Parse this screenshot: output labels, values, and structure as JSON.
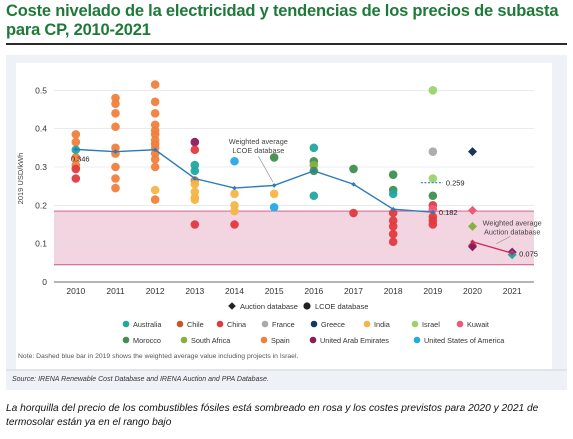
{
  "title": "Coste nivelado de la electricidad y tendencias de los precios de subasta para CP, 2010-2021",
  "caption": "La horquilla del precio de los combustibles fósiles está sombreado en rosa y los costes previstos para 2020 y 2021 de termosolar están ya en el rango bajo",
  "note": "Note: Dashed blue bar in 2019 shows the weighted average value including projects in Israel.",
  "source": "Source: IRENA Renewable Cost Database and IRENA Auction and PPA Database.",
  "colors": {
    "Australia": "#21a8a0",
    "Chile": "#c9542a",
    "China": "#e03a3e",
    "France": "#a9a9a9",
    "Greece": "#14365e",
    "India": "#f4b547",
    "Israel": "#9bd36b",
    "Kuwait": "#ec5a78",
    "Morocco": "#3f8f4f",
    "South Africa": "#86b13d",
    "Spain": "#f07f3c",
    "United Arab Emirates": "#8a1c5c",
    "United States of America": "#26a9e1",
    "trend": "#2b7bbd",
    "fossil_band": "#f3d5e1",
    "fossil_line": "#c9547e",
    "auction_line": "#d0245c"
  },
  "chart_data": {
    "type": "scatter",
    "title": "",
    "xlabel": "",
    "ylabel": "2019 USD/kWh",
    "xlim": [
      2009.45,
      2021.55
    ],
    "ylim": [
      0,
      0.54
    ],
    "xticks": [
      "2010",
      "2011",
      "2012",
      "2013",
      "2014",
      "2015",
      "2016",
      "2017",
      "2018",
      "2019",
      "2020",
      "2021"
    ],
    "yticks": [
      "0",
      "0.1",
      "0.2",
      "0.3",
      "0.4",
      "0.5"
    ],
    "fossil_fuel_range": [
      0.045,
      0.185
    ],
    "legend_shapes": [
      {
        "label": "Auction database",
        "shape": "diamond"
      },
      {
        "label": "LCOE database",
        "shape": "circle"
      }
    ],
    "legend_countries": [
      "Australia",
      "Chile",
      "China",
      "France",
      "Greece",
      "India",
      "Israel",
      "Kuwait",
      "Morocco",
      "South Africa",
      "Spain",
      "United Arab Emirates",
      "United States of America"
    ],
    "series": [
      {
        "name": "Weighted average LCOE database",
        "x": [
          2010,
          2011,
          2012,
          2013,
          2014,
          2015,
          2016,
          2017,
          2018,
          2019
        ],
        "y": [
          0.346,
          0.34,
          0.345,
          0.27,
          0.245,
          0.252,
          0.29,
          0.255,
          0.19,
          0.182
        ]
      },
      {
        "name": "Weighted average Auction database",
        "x": [
          2020,
          2021
        ],
        "y": [
          0.105,
          0.075
        ]
      }
    ],
    "labels": [
      {
        "x": 2010,
        "y": 0.346,
        "text": "0.346"
      },
      {
        "x": 2019,
        "y": 0.259,
        "text": "0.259"
      },
      {
        "x": 2019,
        "y": 0.182,
        "text": "0.182"
      },
      {
        "x": 2021,
        "y": 0.075,
        "text": "0.075"
      }
    ],
    "annotations": [
      {
        "text": "Weighted average LCOE database",
        "x": 2014.6,
        "y": 0.365
      },
      {
        "text": "Weighted average Auction database",
        "x": 2021.0,
        "y": 0.145
      }
    ],
    "israel_weighted_average": 0.259,
    "points": [
      {
        "c": "Spain",
        "x": 2010,
        "y": 0.385
      },
      {
        "c": "Spain",
        "x": 2010,
        "y": 0.365
      },
      {
        "c": "Spain",
        "x": 2010,
        "y": 0.325
      },
      {
        "c": "Spain",
        "x": 2010,
        "y": 0.305
      },
      {
        "c": "China",
        "x": 2010,
        "y": 0.295
      },
      {
        "c": "China",
        "x": 2010,
        "y": 0.27
      },
      {
        "c": "Australia",
        "x": 2010,
        "y": 0.345
      },
      {
        "c": "Spain",
        "x": 2011,
        "y": 0.48
      },
      {
        "c": "Spain",
        "x": 2011,
        "y": 0.465
      },
      {
        "c": "Spain",
        "x": 2011,
        "y": 0.44
      },
      {
        "c": "Spain",
        "x": 2011,
        "y": 0.405
      },
      {
        "c": "Spain",
        "x": 2011,
        "y": 0.35
      },
      {
        "c": "Spain",
        "x": 2011,
        "y": 0.335
      },
      {
        "c": "Spain",
        "x": 2011,
        "y": 0.3
      },
      {
        "c": "Spain",
        "x": 2011,
        "y": 0.27
      },
      {
        "c": "Spain",
        "x": 2011,
        "y": 0.245
      },
      {
        "c": "Spain",
        "x": 2012,
        "y": 0.515
      },
      {
        "c": "Spain",
        "x": 2012,
        "y": 0.47
      },
      {
        "c": "Spain",
        "x": 2012,
        "y": 0.44
      },
      {
        "c": "Spain",
        "x": 2012,
        "y": 0.41
      },
      {
        "c": "Spain",
        "x": 2012,
        "y": 0.395
      },
      {
        "c": "Spain",
        "x": 2012,
        "y": 0.385
      },
      {
        "c": "Spain",
        "x": 2012,
        "y": 0.37
      },
      {
        "c": "Spain",
        "x": 2012,
        "y": 0.36
      },
      {
        "c": "Spain",
        "x": 2012,
        "y": 0.35
      },
      {
        "c": "Spain",
        "x": 2012,
        "y": 0.335
      },
      {
        "c": "Spain",
        "x": 2012,
        "y": 0.32
      },
      {
        "c": "Spain",
        "x": 2012,
        "y": 0.3
      },
      {
        "c": "India",
        "x": 2012,
        "y": 0.24
      },
      {
        "c": "Spain",
        "x": 2012,
        "y": 0.215
      },
      {
        "c": "United Arab Emirates",
        "x": 2013,
        "y": 0.365
      },
      {
        "c": "China",
        "x": 2013,
        "y": 0.345
      },
      {
        "c": "Australia",
        "x": 2013,
        "y": 0.305
      },
      {
        "c": "Australia",
        "x": 2013,
        "y": 0.29
      },
      {
        "c": "Spain",
        "x": 2013,
        "y": 0.265
      },
      {
        "c": "India",
        "x": 2013,
        "y": 0.255
      },
      {
        "c": "India",
        "x": 2013,
        "y": 0.235
      },
      {
        "c": "India",
        "x": 2013,
        "y": 0.22
      },
      {
        "c": "India",
        "x": 2013,
        "y": 0.215
      },
      {
        "c": "China",
        "x": 2013,
        "y": 0.15
      },
      {
        "c": "United States of America",
        "x": 2014,
        "y": 0.315
      },
      {
        "c": "India",
        "x": 2014,
        "y": 0.23
      },
      {
        "c": "India",
        "x": 2014,
        "y": 0.2
      },
      {
        "c": "India",
        "x": 2014,
        "y": 0.185
      },
      {
        "c": "China",
        "x": 2014,
        "y": 0.15
      },
      {
        "c": "Morocco",
        "x": 2015,
        "y": 0.325
      },
      {
        "c": "India",
        "x": 2015,
        "y": 0.23
      },
      {
        "c": "United States of America",
        "x": 2015,
        "y": 0.195
      },
      {
        "c": "Australia",
        "x": 2016,
        "y": 0.35
      },
      {
        "c": "Morocco",
        "x": 2016,
        "y": 0.315
      },
      {
        "c": "South Africa",
        "x": 2016,
        "y": 0.305
      },
      {
        "c": "Morocco",
        "x": 2016,
        "y": 0.29
      },
      {
        "c": "Australia",
        "x": 2016,
        "y": 0.225
      },
      {
        "c": "Morocco",
        "x": 2017,
        "y": 0.295
      },
      {
        "c": "China",
        "x": 2017,
        "y": 0.18
      },
      {
        "c": "Morocco",
        "x": 2018,
        "y": 0.28
      },
      {
        "c": "Morocco",
        "x": 2018,
        "y": 0.24
      },
      {
        "c": "Australia",
        "x": 2018,
        "y": 0.23
      },
      {
        "c": "China",
        "x": 2018,
        "y": 0.18
      },
      {
        "c": "China",
        "x": 2018,
        "y": 0.16
      },
      {
        "c": "China",
        "x": 2018,
        "y": 0.145
      },
      {
        "c": "China",
        "x": 2018,
        "y": 0.125
      },
      {
        "c": "China",
        "x": 2018,
        "y": 0.105
      },
      {
        "c": "Israel",
        "x": 2019,
        "y": 0.5
      },
      {
        "c": "France",
        "x": 2019,
        "y": 0.34
      },
      {
        "c": "Israel",
        "x": 2019,
        "y": 0.27
      },
      {
        "c": "Morocco",
        "x": 2019,
        "y": 0.225
      },
      {
        "c": "China",
        "x": 2019,
        "y": 0.2
      },
      {
        "c": "Kuwait",
        "x": 2019,
        "y": 0.19
      },
      {
        "c": "China",
        "x": 2019,
        "y": 0.17
      },
      {
        "c": "China",
        "x": 2019,
        "y": 0.16
      },
      {
        "c": "China",
        "x": 2019,
        "y": 0.15
      }
    ],
    "auction_points": [
      {
        "c": "Greece",
        "x": 2020,
        "y": 0.34
      },
      {
        "c": "Kuwait",
        "x": 2020,
        "y": 0.187
      },
      {
        "c": "South Africa",
        "x": 2020,
        "y": 0.145
      },
      {
        "c": "Chile",
        "x": 2020,
        "y": 0.096
      },
      {
        "c": "United Arab Emirates",
        "x": 2020,
        "y": 0.092
      },
      {
        "c": "United Arab Emirates",
        "x": 2021,
        "y": 0.078
      },
      {
        "c": "Australia",
        "x": 2021,
        "y": 0.071
      }
    ]
  }
}
